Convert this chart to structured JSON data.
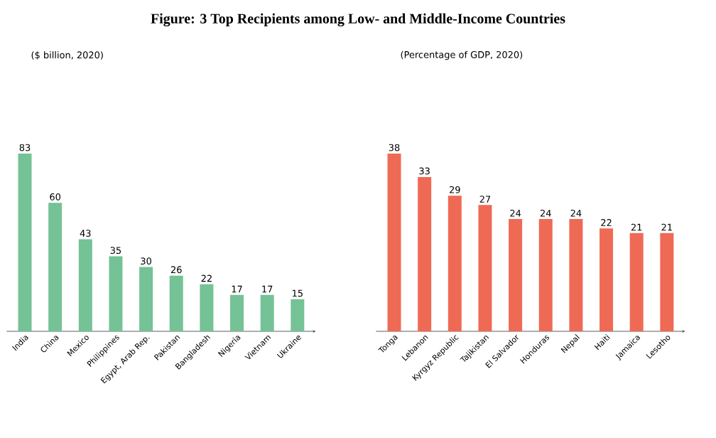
{
  "chart_data": [
    {
      "type": "bar",
      "title": "Figure: 3 Top Recipients among Low- and Middle-Income Countries",
      "subtitle": "($ billion, 2020)",
      "categories": [
        "India",
        "China",
        "Mexico",
        "Philippines",
        "Egypt, Arab Rep.",
        "Pakistan",
        "Bangladesh",
        "Nigeria",
        "Vietnam",
        "Ukraine"
      ],
      "values": [
        83,
        60,
        43,
        35,
        30,
        26,
        22,
        17,
        17,
        15
      ],
      "color": "#74c295",
      "data_labels": true
    },
    {
      "type": "bar",
      "subtitle": "(Percentage of GDP, 2020)",
      "categories": [
        "Tonga",
        "Lebanon",
        "Kyrgyz Republic",
        "Tajikistan",
        "El Salvador",
        "Honduras",
        "Nepal",
        "Haiti",
        "Jamaica",
        "Lesotho"
      ],
      "values": [
        38,
        33,
        29,
        27,
        24,
        24,
        24,
        22,
        21,
        21
      ],
      "color": "#ef6a55",
      "data_labels": true
    }
  ]
}
